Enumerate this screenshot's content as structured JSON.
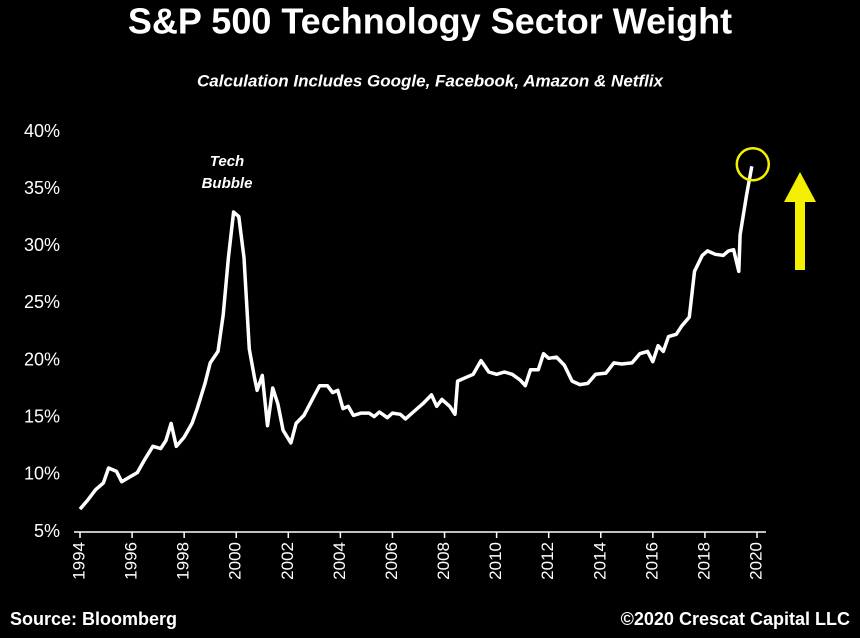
{
  "chart_data": {
    "type": "line",
    "title": "S&P 500 Technology Sector Weight",
    "subtitle": "Calculation Includes Google, Facebook, Amazon & Netflix",
    "annotation": [
      "Tech",
      "Bubble"
    ],
    "source": "Source: Bloomberg",
    "credit": "©2020 Crescat Capital LLC",
    "color": "#ffffff",
    "highlight_color": "#f5f000",
    "x": [
      1994.0,
      1994.3,
      1994.6,
      1994.9,
      1995.1,
      1995.4,
      1995.6,
      1995.9,
      1996.2,
      1996.5,
      1996.8,
      1997.1,
      1997.3,
      1997.5,
      1997.7,
      1998.0,
      1998.3,
      1998.5,
      1998.8,
      1999.0,
      1999.3,
      1999.5,
      1999.7,
      1999.9,
      2000.1,
      2000.3,
      2000.5,
      2000.7,
      2000.8,
      2001.0,
      2001.2,
      2001.4,
      2001.6,
      2001.8,
      2002.1,
      2002.3,
      2002.6,
      2002.9,
      2003.2,
      2003.5,
      2003.7,
      2003.9,
      2004.1,
      2004.3,
      2004.5,
      2004.8,
      2005.1,
      2005.3,
      2005.5,
      2005.8,
      2006.0,
      2006.3,
      2006.5,
      2006.8,
      2007.2,
      2007.5,
      2007.7,
      2007.9,
      2008.2,
      2008.4,
      2008.5,
      2008.8,
      2009.1,
      2009.4,
      2009.7,
      2010.0,
      2010.3,
      2010.6,
      2010.9,
      2011.1,
      2011.3,
      2011.6,
      2011.8,
      2012.0,
      2012.3,
      2012.6,
      2012.9,
      2013.2,
      2013.5,
      2013.8,
      2014.2,
      2014.5,
      2014.8,
      2015.2,
      2015.5,
      2015.8,
      2016.0,
      2016.2,
      2016.4,
      2016.6,
      2016.9,
      2017.1,
      2017.4,
      2017.6,
      2017.9,
      2018.1,
      2018.4,
      2018.7,
      2018.9,
      2019.1,
      2019.3,
      2019.35,
      2019.6,
      2019.8
    ],
    "values": [
      7,
      7.8,
      8.7,
      9.3,
      10.6,
      10.3,
      9.4,
      9.8,
      10.2,
      11.4,
      12.5,
      12.3,
      13,
      14.5,
      12.5,
      13.3,
      14.5,
      15.8,
      18,
      19.8,
      20.8,
      24,
      29,
      33,
      32.6,
      29,
      21,
      18.5,
      17.4,
      18.7,
      14.3,
      17.6,
      16.2,
      13.9,
      12.8,
      14.5,
      15.2,
      16.5,
      17.8,
      17.8,
      17.2,
      17.4,
      15.8,
      16,
      15.2,
      15.4,
      15.4,
      15.1,
      15.5,
      15,
      15.4,
      15.3,
      14.9,
      15.5,
      16.3,
      17,
      16,
      16.6,
      16,
      15.3,
      18.2,
      18.5,
      18.8,
      20,
      19,
      18.8,
      19,
      18.8,
      18.3,
      17.8,
      19.2,
      19.2,
      20.6,
      20.2,
      20.3,
      19.6,
      18.2,
      17.9,
      18,
      18.8,
      18.9,
      19.8,
      19.7,
      19.8,
      20.6,
      20.8,
      19.9,
      21.3,
      20.8,
      22.1,
      22.3,
      23,
      23.8,
      27.8,
      29.2,
      29.6,
      29.3,
      29.2,
      29.6,
      29.7,
      27.8,
      31,
      34.5,
      37
    ],
    "xlim": [
      1994,
      2020
    ],
    "xticks": [
      1994,
      1996,
      1998,
      2000,
      2002,
      2004,
      2006,
      2008,
      2010,
      2012,
      2014,
      2016,
      2018,
      2020
    ],
    "ylim": [
      5,
      40
    ],
    "yticks": [
      {
        "value": 5,
        "label": "5%"
      },
      {
        "value": 10,
        "label": "10%"
      },
      {
        "value": 15,
        "label": "15%"
      },
      {
        "value": 20,
        "label": "20%"
      },
      {
        "value": 25,
        "label": "25%"
      },
      {
        "value": 30,
        "label": "30%"
      },
      {
        "value": 35,
        "label": "35%"
      },
      {
        "value": 40,
        "label": "40%"
      }
    ],
    "grid": false
  }
}
